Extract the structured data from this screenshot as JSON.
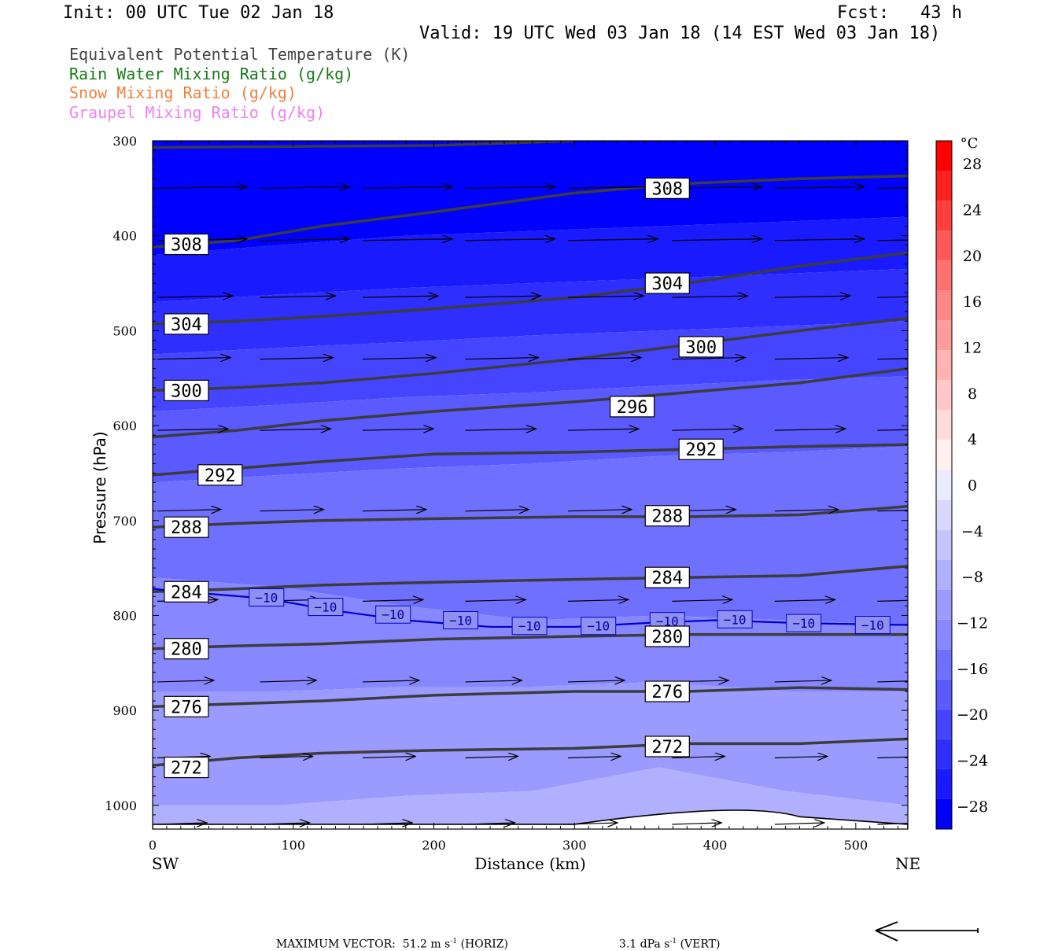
{
  "header": {
    "init": "Init: 00 UTC Tue 02 Jan 18",
    "fcst": "Fcst:   43 h",
    "valid": "Valid: 19 UTC Wed 03 Jan 18 (14 EST Wed 03 Jan 18)"
  },
  "fields": [
    {
      "label": "Equivalent Potential Temperature (K)",
      "color": "#444444"
    },
    {
      "label": "Rain Water Mixing Ratio (g/kg)",
      "color": "#1a7a1a"
    },
    {
      "label": "Snow Mixing Ratio (g/kg)",
      "color": "#f08040"
    },
    {
      "label": "Graupel Mixing Ratio (g/kg)",
      "color": "#ee82ee"
    }
  ],
  "chart_data": {
    "type": "contour-cross-section",
    "xlabel": "Distance (km)",
    "ylabel": "Pressure (hPa)",
    "xlim": [
      0,
      537
    ],
    "ylim": [
      1025,
      300
    ],
    "y_scale": "linear",
    "x_ticks": [
      0,
      100,
      200,
      300,
      400,
      500
    ],
    "x_tick_labels": [
      "0",
      "100",
      "200",
      "300",
      "400",
      "500"
    ],
    "y_ticks": [
      300,
      400,
      500,
      600,
      700,
      800,
      900,
      1000
    ],
    "y_tick_labels": [
      "300",
      "400",
      "500",
      "600",
      "700",
      "800",
      "900",
      "1000"
    ],
    "endpoints": {
      "left": "SW",
      "right": "NE"
    },
    "colorbar": {
      "unit": "°C",
      "levels": [
        -32,
        -28,
        -24,
        -20,
        -16,
        -12,
        -8,
        -4,
        0,
        4,
        8,
        12,
        16,
        20,
        24,
        28,
        32
      ],
      "labels": [
        "28",
        "24",
        "20",
        "16",
        "12",
        "8",
        "4",
        "0",
        "−4",
        "−8",
        "−12",
        "−16",
        "−20",
        "−24",
        "−28"
      ],
      "label_values": [
        28,
        24,
        20,
        16,
        12,
        8,
        4,
        0,
        -4,
        -8,
        -12,
        -16,
        -20,
        -24,
        -28
      ],
      "colors": [
        "#0000ff",
        "#1a1aff",
        "#2e2eff",
        "#4545ff",
        "#5a5aff",
        "#7070ff",
        "#8787ff",
        "#9b9bff",
        "#b0b0ff",
        "#c4c4ff",
        "#d8d8ff",
        "#eaeaff",
        "#fff0f0",
        "#ffdcdc",
        "#ffc8c8",
        "#ffb3b3",
        "#ff9d9d",
        "#ff8787",
        "#ff7070",
        "#ff5858",
        "#ff3e3e",
        "#ff2020",
        "#ff0000"
      ]
    },
    "temperature_bands": [
      {
        "temp": -32,
        "top_p": [
          300,
          300,
          300,
          300,
          300,
          300,
          300
        ],
        "bottom_p": [
          420,
          410,
          400,
          395,
          390,
          385,
          380
        ]
      },
      {
        "temp": -28,
        "top_p": [
          420,
          410,
          400,
          395,
          390,
          385,
          380
        ],
        "bottom_p": [
          470,
          462,
          455,
          450,
          445,
          440,
          435
        ]
      },
      {
        "temp": -24,
        "top_p": [
          470,
          462,
          455,
          450,
          445,
          440,
          435
        ],
        "bottom_p": [
          525,
          518,
          512,
          505,
          500,
          495,
          490
        ]
      },
      {
        "temp": -20,
        "top_p": [
          525,
          518,
          512,
          505,
          500,
          495,
          490
        ],
        "bottom_p": [
          585,
          578,
          570,
          565,
          558,
          552,
          548
        ]
      },
      {
        "temp": -16,
        "top_p": [
          585,
          578,
          570,
          565,
          558,
          552,
          548
        ],
        "bottom_p": [
          660,
          652,
          645,
          640,
          632,
          628,
          622
        ]
      },
      {
        "temp": -12,
        "top_p": [
          660,
          652,
          645,
          640,
          632,
          628,
          622
        ],
        "bottom_p": [
          760,
          770,
          790,
          805,
          800,
          805,
          810
        ]
      },
      {
        "temp": -8,
        "top_p": [
          760,
          770,
          790,
          805,
          800,
          805,
          810
        ],
        "bottom_p": [
          880,
          880,
          875,
          875,
          870,
          880,
          880
        ]
      },
      {
        "temp": -4,
        "top_p": [
          880,
          880,
          875,
          875,
          870,
          880,
          880
        ],
        "bottom_p": [
          1000,
          1000,
          990,
          985,
          960,
          985,
          1000
        ]
      },
      {
        "temp": 0,
        "top_p": [
          1000,
          1000,
          990,
          985,
          960,
          985,
          1000
        ],
        "bottom_p": [
          1025,
          1025,
          1025,
          1025,
          1025,
          1025,
          1025
        ]
      }
    ],
    "band_x": [
      0,
      90,
      180,
      270,
      360,
      450,
      537
    ],
    "theta_e_contours": [
      {
        "value": 272,
        "x": [
          0,
          60,
          120,
          200,
          300,
          380,
          460,
          537
        ],
        "p": [
          958,
          950,
          945,
          942,
          940,
          935,
          935,
          930
        ]
      },
      {
        "value": 276,
        "x": [
          0,
          60,
          120,
          200,
          300,
          380,
          460,
          537
        ],
        "p": [
          896,
          893,
          890,
          884,
          880,
          880,
          876,
          878
        ]
      },
      {
        "value": 280,
        "x": [
          0,
          60,
          120,
          200,
          300,
          380,
          460,
          537
        ],
        "p": [
          835,
          832,
          830,
          825,
          822,
          820,
          820,
          820
        ]
      },
      {
        "value": 284,
        "x": [
          0,
          60,
          120,
          200,
          300,
          380,
          460,
          537
        ],
        "p": [
          775,
          772,
          768,
          765,
          762,
          760,
          758,
          748
        ]
      },
      {
        "value": 288,
        "x": [
          0,
          60,
          120,
          200,
          300,
          380,
          460,
          537
        ],
        "p": [
          707,
          703,
          700,
          698,
          696,
          696,
          694,
          685
        ]
      },
      {
        "value": 292,
        "x": [
          0,
          60,
          120,
          200,
          300,
          380,
          460,
          537
        ],
        "p": [
          652,
          645,
          638,
          630,
          628,
          625,
          622,
          620
        ]
      },
      {
        "value": 296,
        "x": [
          0,
          60,
          120,
          200,
          300,
          380,
          460,
          537
        ],
        "p": [
          612,
          605,
          595,
          585,
          575,
          565,
          555,
          540
        ]
      },
      {
        "value": 300,
        "x": [
          0,
          60,
          120,
          200,
          300,
          380,
          460,
          537
        ],
        "p": [
          563,
          560,
          555,
          545,
          530,
          515,
          500,
          487
        ]
      },
      {
        "value": 304,
        "x": [
          0,
          60,
          120,
          200,
          300,
          380,
          460,
          537
        ],
        "p": [
          493,
          490,
          485,
          477,
          465,
          450,
          432,
          418
        ]
      },
      {
        "value": 308,
        "x": [
          0,
          60,
          120,
          200,
          300,
          380,
          460,
          537
        ],
        "p": [
          412,
          405,
          390,
          375,
          355,
          345,
          340,
          337
        ]
      },
      {
        "value": 312,
        "x": [
          0,
          100,
          200,
          300
        ],
        "p": [
          307,
          306,
          305,
          300
        ]
      }
    ],
    "theta_e_labels": [
      {
        "text": "272",
        "x": 24,
        "p": 960
      },
      {
        "text": "272",
        "x": 366,
        "p": 938
      },
      {
        "text": "276",
        "x": 24,
        "p": 896
      },
      {
        "text": "276",
        "x": 366,
        "p": 880
      },
      {
        "text": "280",
        "x": 24,
        "p": 835
      },
      {
        "text": "280",
        "x": 366,
        "p": 822
      },
      {
        "text": "284",
        "x": 24,
        "p": 775
      },
      {
        "text": "284",
        "x": 366,
        "p": 760
      },
      {
        "text": "288",
        "x": 24,
        "p": 707
      },
      {
        "text": "288",
        "x": 366,
        "p": 695
      },
      {
        "text": "292",
        "x": 48,
        "p": 652
      },
      {
        "text": "292",
        "x": 390,
        "p": 625
      },
      {
        "text": "296",
        "x": 341,
        "p": 580
      },
      {
        "text": "300",
        "x": 24,
        "p": 563
      },
      {
        "text": "300",
        "x": 390,
        "p": 517
      },
      {
        "text": "304",
        "x": 24,
        "p": 493
      },
      {
        "text": "304",
        "x": 366,
        "p": 450
      },
      {
        "text": "308",
        "x": 24,
        "p": 409
      },
      {
        "text": "308",
        "x": 366,
        "p": 350
      }
    ],
    "isotherm_minus10": {
      "value": -10,
      "x": [
        0,
        30,
        80,
        130,
        180,
        240,
        300,
        350,
        400,
        460,
        537
      ],
      "p": [
        772,
        776,
        782,
        795,
        805,
        812,
        812,
        808,
        805,
        808,
        810
      ],
      "label": "−10",
      "label_x": [
        81,
        123,
        171,
        219,
        268,
        317,
        366,
        414,
        463,
        512
      ],
      "label_p": [
        781,
        791,
        799,
        805,
        811,
        811,
        806,
        804,
        808,
        810
      ]
    },
    "wind_rows_p": [
      350,
      405,
      465,
      530,
      605,
      690,
      785,
      870,
      950,
      1020
    ],
    "wind_cols_x": [
      0,
      73,
      146,
      219,
      292,
      366,
      439,
      512
    ],
    "wind_row_speeds": [
      0.9,
      0.9,
      0.6,
      0.55,
      0.5,
      0.35,
      0.28,
      0.2,
      0.12,
      0.05
    ],
    "max_vector": {
      "label": "MAXIMUM VECTOR:",
      "horiz": "51.2 m s",
      "horiz_unit": "(HORIZ)",
      "vert": "3.1 dPa s",
      "vert_unit": "(VERT)",
      "exponent": "-1"
    }
  }
}
